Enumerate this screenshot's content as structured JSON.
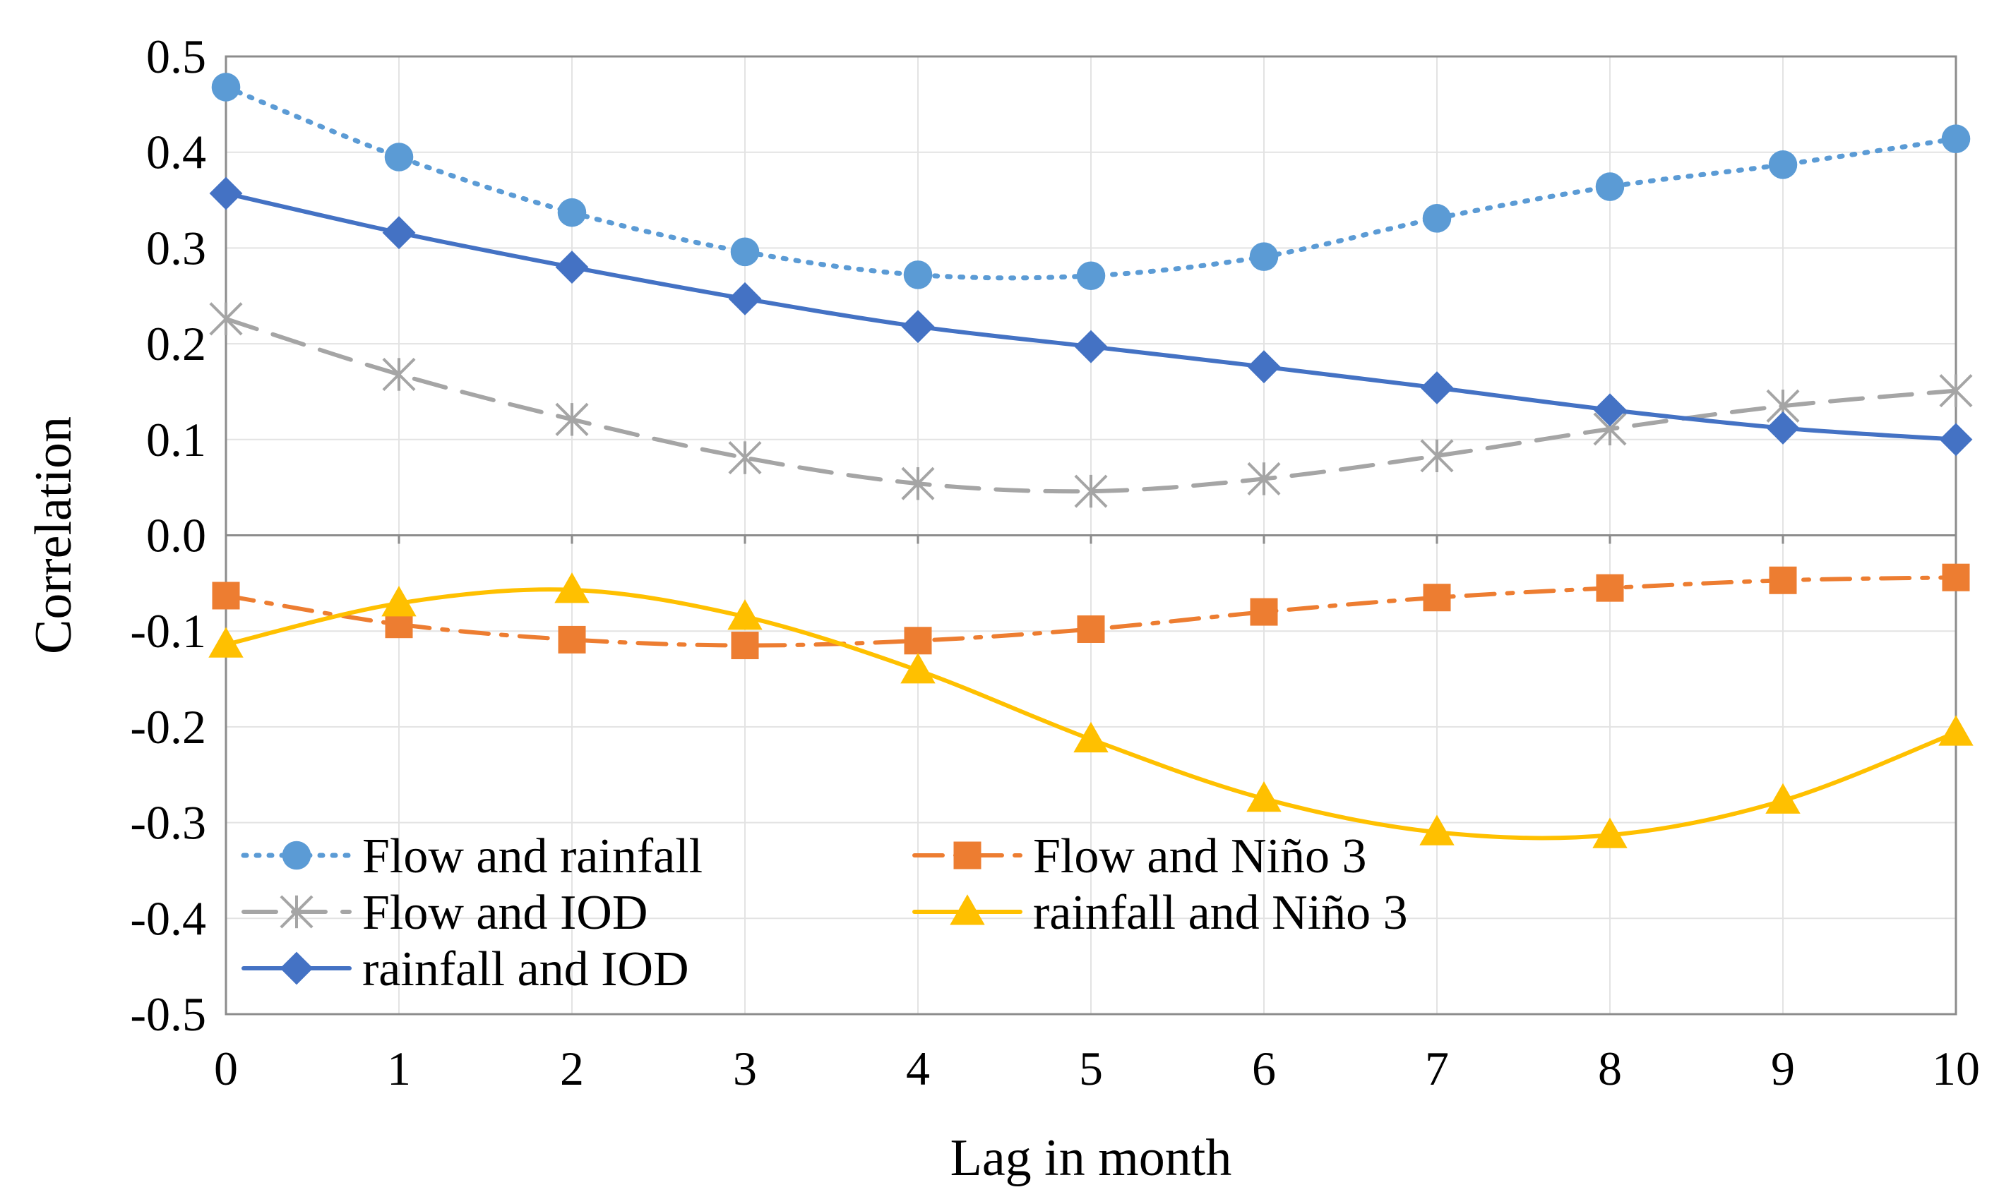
{
  "chart_data": {
    "type": "line",
    "title": "",
    "xlabel": "Lag in month",
    "ylabel": "Correlation",
    "x": [
      0,
      1,
      2,
      3,
      4,
      5,
      6,
      7,
      8,
      9,
      10
    ],
    "xlim": [
      0,
      10
    ],
    "ylim": [
      -0.5,
      0.5
    ],
    "yticks": [
      "0.5",
      "0.4",
      "0.3",
      "0.2",
      "0.1",
      "0.0",
      "-0.1",
      "-0.2",
      "-0.3",
      "-0.4",
      "-0.5"
    ],
    "xticks": [
      "0",
      "1",
      "2",
      "3",
      "4",
      "5",
      "6",
      "7",
      "8",
      "9",
      "10"
    ],
    "grid": true,
    "legend_position": "bottom-left",
    "series": [
      {
        "name": "Flow and rainfall",
        "color": "#5B9BD5",
        "line_style": "dotted",
        "marker": "circle",
        "values": [
          0.468,
          0.395,
          0.337,
          0.296,
          0.272,
          0.271,
          0.291,
          0.331,
          0.364,
          0.387,
          0.414
        ]
      },
      {
        "name": "Flow and Niño 3",
        "color": "#ED7D31",
        "line_style": "dash-dot",
        "marker": "square",
        "values": [
          -0.063,
          -0.093,
          -0.109,
          -0.115,
          -0.11,
          -0.098,
          -0.08,
          -0.065,
          -0.055,
          -0.047,
          -0.044
        ]
      },
      {
        "name": "Flow and IOD",
        "color": "#A5A5A5",
        "line_style": "dashed",
        "marker": "star",
        "values": [
          0.226,
          0.168,
          0.121,
          0.081,
          0.054,
          0.046,
          0.059,
          0.083,
          0.111,
          0.135,
          0.151
        ]
      },
      {
        "name": "rainfall and Niño 3",
        "color": "#FFC000",
        "line_style": "solid",
        "marker": "triangle",
        "values": [
          -0.114,
          -0.071,
          -0.057,
          -0.085,
          -0.141,
          -0.213,
          -0.275,
          -0.31,
          -0.313,
          -0.277,
          -0.206
        ]
      },
      {
        "name": "rainfall and IOD",
        "color": "#4472C4",
        "line_style": "solid",
        "marker": "diamond",
        "values": [
          0.357,
          0.316,
          0.28,
          0.247,
          0.218,
          0.197,
          0.176,
          0.154,
          0.131,
          0.112,
          0.1
        ]
      }
    ]
  }
}
